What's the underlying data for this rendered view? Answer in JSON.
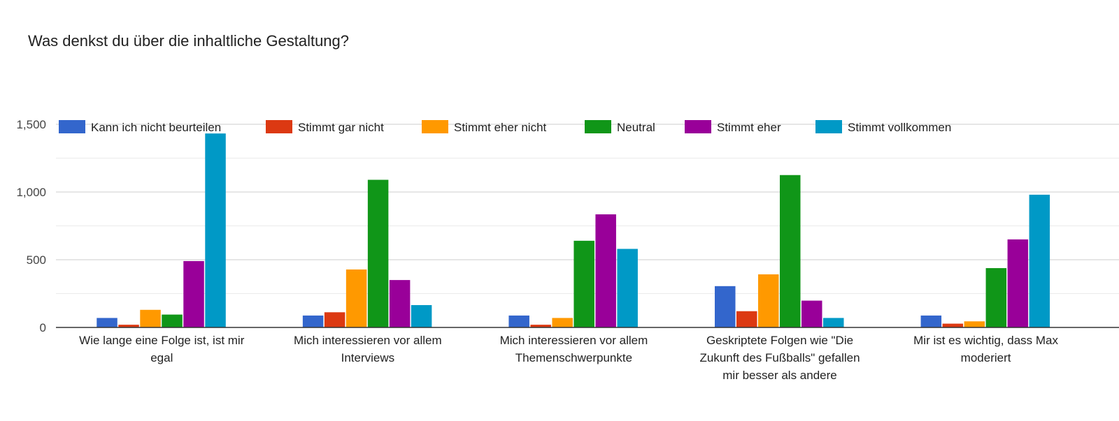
{
  "chart_data": {
    "type": "bar",
    "title": "Was denkst du über die inhaltliche Gestaltung?",
    "xlabel": "",
    "ylabel": "",
    "ylim": [
      0,
      1500
    ],
    "yticks": [
      0,
      500,
      1000,
      1500
    ],
    "ytick_labels": [
      "0",
      "500",
      "1,000",
      "1,500"
    ],
    "grid": true,
    "legend_position": "top",
    "categories": [
      [
        "Wie lange eine Folge ist, ist mir",
        "egal"
      ],
      [
        "Mich interessieren vor allem",
        "Interviews"
      ],
      [
        "Mich interessieren vor allem",
        "Themenschwerpunkte"
      ],
      [
        "Geskriptete Folgen wie \"Die",
        "Zukunft des Fußballs\" gefallen",
        "mir besser als andere"
      ],
      [
        "Mir ist es wichtig, dass Max",
        "moderiert"
      ]
    ],
    "series": [
      {
        "name": "Kann ich nicht beurteilen",
        "color": "#3366cc",
        "values": [
          70,
          88,
          88,
          305,
          88
        ]
      },
      {
        "name": "Stimmt gar nicht",
        "color": "#dc3912",
        "values": [
          20,
          112,
          20,
          120,
          28
        ]
      },
      {
        "name": "Stimmt eher nicht",
        "color": "#ff9900",
        "values": [
          130,
          428,
          70,
          392,
          45
        ]
      },
      {
        "name": "Neutral",
        "color": "#109618",
        "values": [
          95,
          1090,
          640,
          1125,
          438
        ]
      },
      {
        "name": "Stimmt eher",
        "color": "#990099",
        "values": [
          490,
          350,
          835,
          198,
          650
        ]
      },
      {
        "name": "Stimmt vollkommen",
        "color": "#0099c6",
        "values": [
          1432,
          165,
          580,
          70,
          980
        ]
      }
    ]
  }
}
